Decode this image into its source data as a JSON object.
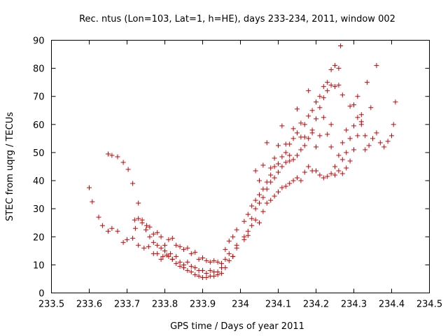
{
  "chart_data": {
    "type": "scatter",
    "title": "Rec. ntus (Lon=103, Lat=1, h=HE), days 233-234, 2011, window 002",
    "xlabel": "GPS time / Days of year 2011",
    "ylabel": "STEC from uqrg / TECUs",
    "xlim": [
      233.5,
      234.5
    ],
    "ylim": [
      0,
      90
    ],
    "xticks": [
      "233.5",
      "233.6",
      "233.7",
      "233.8",
      "233.9",
      "234",
      "234.1",
      "234.2",
      "234.3",
      "234.4",
      "234.5"
    ],
    "yticks": [
      "0",
      "10",
      "20",
      "30",
      "40",
      "50",
      "60",
      "70",
      "80",
      "90"
    ],
    "grid": false,
    "marker": "+",
    "color": "#d00000",
    "series": [
      {
        "points": [
          [
            233.6,
            37.5
          ],
          [
            233.608,
            32.5
          ],
          [
            233.625,
            27.0
          ],
          [
            233.635,
            24.0
          ],
          [
            233.65,
            22.0
          ],
          [
            233.66,
            23.0
          ],
          [
            233.675,
            22.0
          ],
          [
            233.69,
            18.0
          ],
          [
            233.7,
            19.0
          ],
          [
            233.715,
            19.5
          ],
          [
            233.722,
            23.0
          ],
          [
            233.73,
            17.0
          ],
          [
            233.745,
            16.0
          ],
          [
            233.757,
            16.5
          ],
          [
            233.77,
            14.0
          ],
          [
            233.78,
            14.0
          ],
          [
            233.79,
            12.0
          ],
          [
            233.795,
            13.0
          ],
          [
            233.805,
            13.5
          ],
          [
            233.815,
            14.0
          ],
          [
            233.82,
            12.0
          ],
          [
            233.83,
            13.0
          ],
          [
            233.84,
            11.0
          ],
          [
            233.85,
            10.0
          ],
          [
            233.86,
            11.0
          ],
          [
            233.87,
            9.5
          ],
          [
            233.88,
            9.0
          ],
          [
            233.89,
            8.0
          ],
          [
            233.9,
            8.0
          ],
          [
            233.91,
            7.0
          ],
          [
            233.92,
            8.0
          ],
          [
            233.93,
            7.5
          ],
          [
            233.94,
            7.5
          ],
          [
            233.95,
            9.0
          ],
          [
            233.96,
            12.0
          ],
          [
            233.97,
            14.0
          ],
          [
            233.98,
            13.0
          ],
          [
            233.99,
            17.0
          ],
          [
            234.01,
            20.0
          ],
          [
            234.02,
            20.5
          ],
          [
            234.03,
            24.0
          ],
          [
            234.04,
            26.0
          ],
          [
            234.05,
            25.0
          ],
          [
            234.06,
            29.0
          ],
          [
            234.07,
            32.0
          ],
          [
            234.08,
            33.0
          ],
          [
            234.09,
            34.5
          ],
          [
            234.1,
            36.0
          ],
          [
            234.11,
            37.5
          ],
          [
            234.12,
            38.0
          ],
          [
            234.13,
            39.0
          ],
          [
            234.14,
            40.0
          ],
          [
            234.15,
            41.0
          ],
          [
            234.16,
            40.0
          ],
          [
            234.17,
            43.0
          ],
          [
            234.18,
            45.0
          ],
          [
            234.19,
            43.5
          ],
          [
            234.2,
            43.5
          ],
          [
            234.21,
            42.0
          ],
          [
            234.22,
            41.0
          ],
          [
            234.23,
            41.5
          ],
          [
            234.24,
            42.5
          ],
          [
            234.25,
            42.0
          ],
          [
            234.26,
            43.5
          ],
          [
            234.27,
            42.5
          ],
          [
            234.28,
            44.5
          ],
          [
            234.29,
            47.0
          ],
          [
            234.3,
            51.0
          ],
          [
            234.31,
            56.0
          ],
          [
            234.32,
            63.5
          ]
        ]
      },
      {
        "points": [
          [
            233.65,
            49.5
          ],
          [
            233.66,
            49.0
          ],
          [
            233.675,
            48.5
          ],
          [
            233.69,
            46.5
          ],
          [
            233.703,
            44.0
          ],
          [
            233.715,
            39.0
          ],
          [
            233.73,
            32.0
          ],
          [
            233.74,
            26.0
          ],
          [
            233.752,
            24.0
          ],
          [
            233.76,
            23.5
          ],
          [
            233.77,
            21.0
          ],
          [
            233.78,
            21.5
          ],
          [
            233.79,
            20.0
          ],
          [
            233.8,
            17.0
          ],
          [
            233.81,
            19.0
          ],
          [
            233.82,
            19.5
          ],
          [
            233.83,
            17.0
          ],
          [
            233.84,
            16.5
          ],
          [
            233.85,
            15.5
          ],
          [
            233.86,
            16.0
          ],
          [
            233.87,
            14.0
          ],
          [
            233.88,
            14.5
          ],
          [
            233.89,
            12.0
          ],
          [
            233.9,
            12.5
          ],
          [
            233.91,
            11.5
          ],
          [
            233.92,
            11.0
          ],
          [
            233.93,
            11.5
          ],
          [
            233.94,
            11.0
          ],
          [
            233.95,
            10.5
          ],
          [
            233.96,
            15.5
          ],
          [
            233.97,
            18.5
          ],
          [
            233.98,
            20.0
          ],
          [
            233.99,
            22.5
          ],
          [
            234.01,
            25.5
          ],
          [
            234.02,
            28.0
          ],
          [
            234.03,
            31.0
          ],
          [
            234.04,
            33.0
          ],
          [
            234.05,
            35.0
          ],
          [
            234.06,
            37.0
          ],
          [
            234.07,
            39.5
          ],
          [
            234.08,
            42.0
          ],
          [
            234.09,
            45.0
          ],
          [
            234.1,
            46.0
          ],
          [
            234.11,
            48.5
          ],
          [
            234.12,
            50.0
          ],
          [
            234.13,
            53.0
          ],
          [
            234.14,
            55.0
          ],
          [
            234.15,
            57.0
          ],
          [
            234.16,
            55.5
          ],
          [
            234.17,
            60.0
          ],
          [
            234.18,
            63.0
          ],
          [
            234.19,
            65.0
          ],
          [
            234.2,
            68.0
          ],
          [
            234.21,
            70.0
          ],
          [
            234.22,
            73.5
          ],
          [
            234.23,
            75.0
          ],
          [
            234.24,
            74.0
          ],
          [
            234.25,
            73.5
          ],
          [
            234.26,
            74.0
          ],
          [
            234.27,
            70.5
          ]
        ]
      },
      {
        "points": [
          [
            233.72,
            26.0
          ],
          [
            233.73,
            26.5
          ],
          [
            233.74,
            25.0
          ],
          [
            233.75,
            22.5
          ],
          [
            233.76,
            20.0
          ],
          [
            233.77,
            18.0
          ],
          [
            233.78,
            17.0
          ],
          [
            233.79,
            16.0
          ],
          [
            233.8,
            15.0
          ],
          [
            233.81,
            13.0
          ],
          [
            233.82,
            12.0
          ],
          [
            233.83,
            10.5
          ],
          [
            233.84,
            9.5
          ],
          [
            233.85,
            9.0
          ],
          [
            233.86,
            8.0
          ],
          [
            233.87,
            7.5
          ],
          [
            233.88,
            6.5
          ],
          [
            233.89,
            6.0
          ],
          [
            233.9,
            5.5
          ],
          [
            233.91,
            5.5
          ],
          [
            233.92,
            6.0
          ],
          [
            233.93,
            6.0
          ],
          [
            233.94,
            6.5
          ],
          [
            233.95,
            7.0
          ],
          [
            233.96,
            9.0
          ],
          [
            233.97,
            11.5
          ],
          [
            233.98,
            13.0
          ],
          [
            233.99,
            16.0
          ],
          [
            234.01,
            19.0
          ],
          [
            234.02,
            22.0
          ],
          [
            234.03,
            26.5
          ],
          [
            234.04,
            30.0
          ],
          [
            234.05,
            32.0
          ],
          [
            234.06,
            34.0
          ],
          [
            234.07,
            37.0
          ],
          [
            234.08,
            39.5
          ],
          [
            234.09,
            41.0
          ],
          [
            234.1,
            43.0
          ],
          [
            234.11,
            45.0
          ],
          [
            234.12,
            46.5
          ],
          [
            234.13,
            47.0
          ],
          [
            234.14,
            47.5
          ],
          [
            234.15,
            49.0
          ],
          [
            234.16,
            51.0
          ],
          [
            234.17,
            52.5
          ],
          [
            234.18,
            55.0
          ],
          [
            234.19,
            58.0
          ],
          [
            234.2,
            62.0
          ],
          [
            234.21,
            66.0
          ],
          [
            234.22,
            69.5
          ],
          [
            234.23,
            72.0
          ],
          [
            234.24,
            79.5
          ],
          [
            234.25,
            81.0
          ],
          [
            234.26,
            80.0
          ],
          [
            234.265,
            88.0
          ]
        ]
      },
      {
        "points": [
          [
            234.04,
            43.5
          ],
          [
            234.05,
            40.0
          ],
          [
            234.06,
            45.5
          ],
          [
            234.07,
            53.5
          ],
          [
            234.08,
            44.5
          ],
          [
            234.09,
            48.0
          ],
          [
            234.1,
            52.5
          ],
          [
            234.11,
            59.5
          ],
          [
            234.12,
            53.0
          ],
          [
            234.13,
            49.0
          ],
          [
            234.14,
            58.5
          ],
          [
            234.15,
            65.5
          ],
          [
            234.16,
            60.5
          ],
          [
            234.17,
            55.5
          ],
          [
            234.18,
            72.0
          ],
          [
            234.19,
            57.0
          ],
          [
            234.2,
            52.0
          ],
          [
            234.21,
            56.0
          ],
          [
            234.22,
            62.5
          ],
          [
            234.23,
            56.5
          ],
          [
            234.24,
            52.0
          ],
          [
            234.25,
            45.0
          ],
          [
            234.26,
            49.0
          ],
          [
            234.27,
            47.5
          ],
          [
            234.28,
            50.0
          ],
          [
            234.29,
            55.0
          ],
          [
            234.3,
            59.5
          ],
          [
            234.31,
            62.5
          ],
          [
            234.32,
            60.0
          ],
          [
            234.33,
            51.0
          ],
          [
            234.34,
            52.5
          ],
          [
            234.35,
            55.0
          ],
          [
            234.36,
            57.0
          ],
          [
            234.37,
            53.5
          ],
          [
            234.38,
            52.0
          ],
          [
            234.39,
            54.0
          ],
          [
            234.4,
            56.0
          ],
          [
            234.405,
            60.0
          ],
          [
            234.41,
            68.0
          ],
          [
            234.29,
            66.5
          ],
          [
            234.3,
            67.0
          ],
          [
            234.31,
            70.0
          ],
          [
            234.32,
            61.0
          ],
          [
            234.335,
            75.0
          ],
          [
            234.345,
            66.0
          ],
          [
            234.36,
            81.0
          ],
          [
            234.33,
            56.0
          ],
          [
            234.28,
            58.0
          ],
          [
            234.27,
            53.5
          ],
          [
            234.24,
            60.0
          ]
        ]
      }
    ]
  }
}
